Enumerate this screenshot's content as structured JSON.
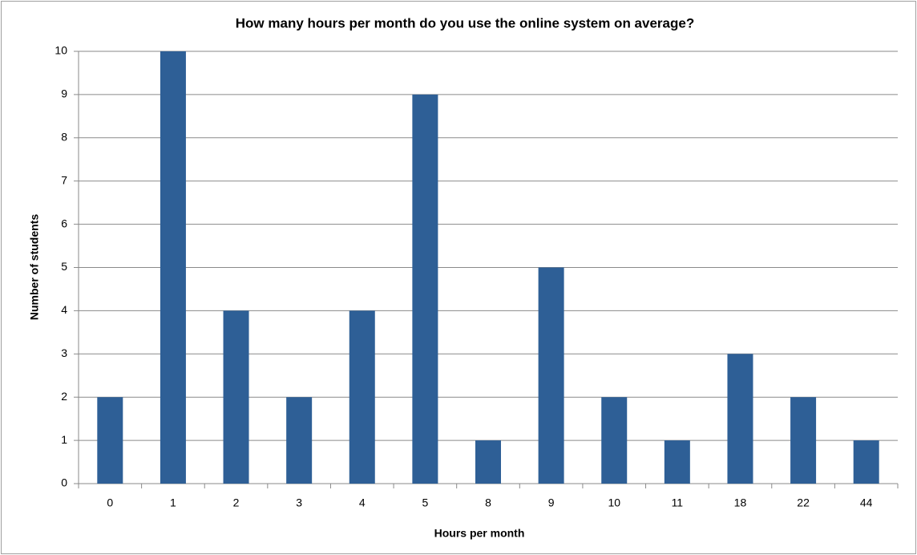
{
  "chart_data": {
    "type": "bar",
    "title": "How many hours per month do you use the online system on average?",
    "x_label": "Hours per month",
    "y_label": "Number of students",
    "categories": [
      "0",
      "1",
      "2",
      "3",
      "4",
      "5",
      "8",
      "9",
      "10",
      "11",
      "18",
      "22",
      "44"
    ],
    "values": [
      2,
      10,
      4,
      2,
      4,
      9,
      1,
      5,
      2,
      1,
      3,
      2,
      1
    ],
    "color": "#2e5f96",
    "ylim": [
      0,
      10
    ],
    "yticks": [
      0,
      1,
      2,
      3,
      4,
      5,
      6,
      7,
      8,
      9,
      10
    ],
    "grid": true
  }
}
